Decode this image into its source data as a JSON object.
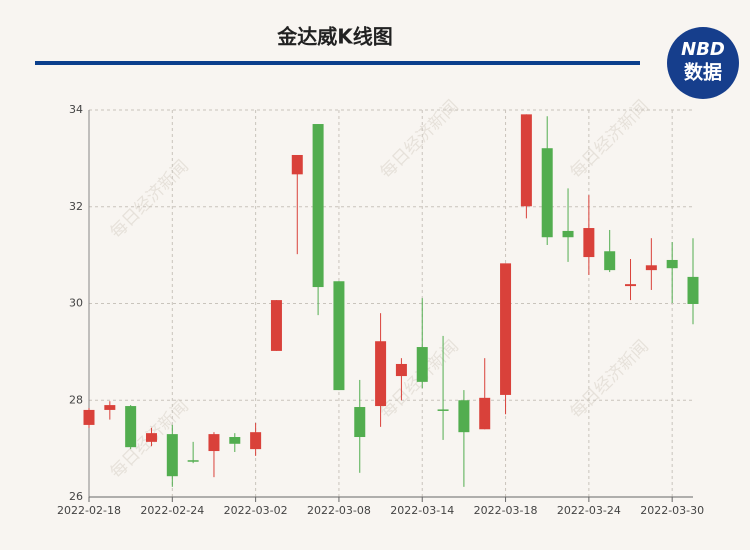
{
  "logo": {
    "top": "NBD",
    "bottom": "数据"
  },
  "watermark": "每日经济新闻",
  "chart_data": {
    "type": "candlestick",
    "title": "金达威K线图",
    "categories": [
      "2022-02-18",
      null,
      null,
      null,
      "2022-02-24",
      null,
      null,
      null,
      "2022-03-02",
      null,
      null,
      null,
      "2022-03-08",
      null,
      null,
      null,
      "2022-03-14",
      null,
      null,
      null,
      "2022-03-18",
      null,
      null,
      null,
      "2022-03-24",
      null,
      null,
      null,
      "2022-03-30",
      null
    ],
    "series": [
      {
        "up_color": "#d9413a",
        "down_color": "#52ad4f",
        "open": [
          27.49,
          27.8,
          27.88,
          27.14,
          27.3,
          26.76,
          26.95,
          27.24,
          26.99,
          29.02,
          32.67,
          33.71,
          30.46,
          27.86,
          27.88,
          28.5,
          29.1,
          27.81,
          28.0,
          27.4,
          28.11,
          32.01,
          33.21,
          31.5,
          30.96,
          31.08,
          30.36,
          30.69,
          30.9,
          30.55
        ],
        "high": [
          27.84,
          27.98,
          27.9,
          27.43,
          27.49,
          27.14,
          27.34,
          27.32,
          27.53,
          30.07,
          33.07,
          33.71,
          30.46,
          28.42,
          29.8,
          28.87,
          30.11,
          29.33,
          28.21,
          28.87,
          30.83,
          33.91,
          33.87,
          32.38,
          32.24,
          31.52,
          30.92,
          31.35,
          31.27,
          31.35
        ],
        "low": [
          27.43,
          27.6,
          26.99,
          27.05,
          26.21,
          26.7,
          26.41,
          26.93,
          26.85,
          29.02,
          31.02,
          29.76,
          28.21,
          26.5,
          27.45,
          28.0,
          28.25,
          27.18,
          26.21,
          27.4,
          27.71,
          31.76,
          31.21,
          30.86,
          30.59,
          30.65,
          30.07,
          30.28,
          30.01,
          29.57
        ],
        "close": [
          27.8,
          27.9,
          27.03,
          27.32,
          26.43,
          26.74,
          27.3,
          27.1,
          27.34,
          30.07,
          33.07,
          30.34,
          28.21,
          27.24,
          29.22,
          28.75,
          28.38,
          27.79,
          27.34,
          28.05,
          30.83,
          33.91,
          31.37,
          31.37,
          31.56,
          30.69,
          30.4,
          30.79,
          30.73,
          29.99
        ]
      }
    ],
    "ylim": [
      26,
      34
    ],
    "yticks": [
      26,
      28,
      30,
      32,
      34
    ],
    "grid": true
  }
}
